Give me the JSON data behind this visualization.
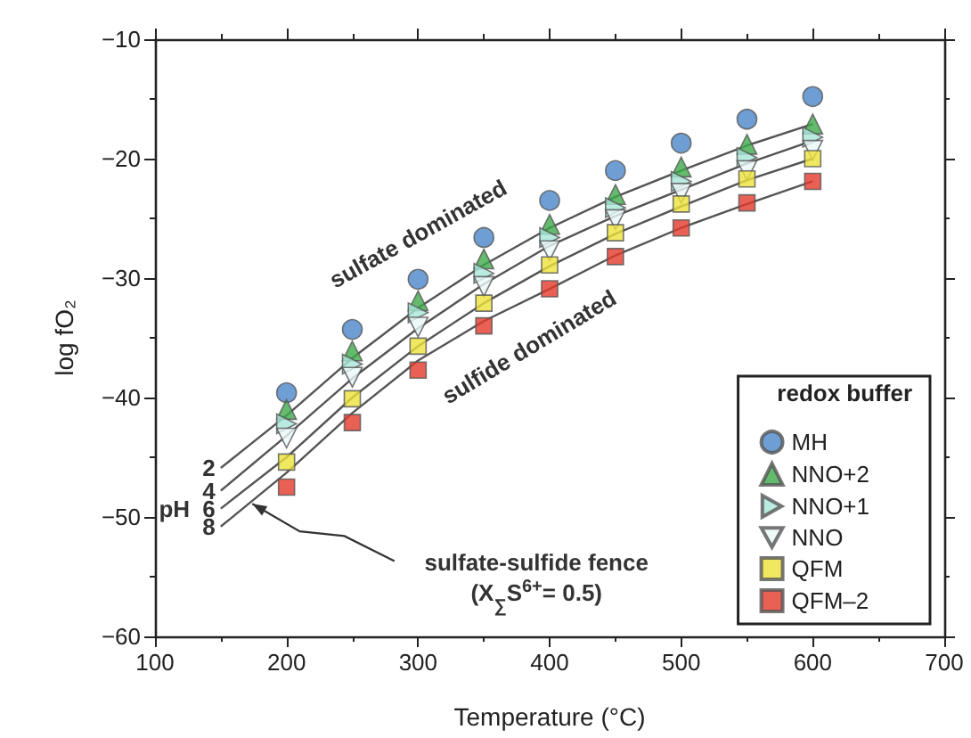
{
  "chart_data": {
    "type": "scatter",
    "xlabel": "Temperature (°C)",
    "ylabel": "log fO₂",
    "legend_title": "redox buffer",
    "xlim": [
      100,
      700
    ],
    "xticks": [
      100,
      200,
      300,
      400,
      500,
      600,
      700
    ],
    "ylim": [
      -60,
      -10
    ],
    "yticks": [
      -60,
      -50,
      -40,
      -30,
      -20,
      -10
    ],
    "grid": false,
    "legend": "bottom right",
    "x": [
      200,
      250,
      300,
      350,
      400,
      450,
      500,
      550,
      600
    ],
    "series": [
      {
        "name": "MH",
        "color": "#4a86c8",
        "marker": "circle",
        "values": [
          -39.6,
          -34.3,
          -30.1,
          -26.6,
          -23.5,
          -21.0,
          -18.7,
          -16.7,
          -14.8
        ]
      },
      {
        "name": "NNO+2",
        "color": "#3daa4a",
        "marker": "triangle",
        "values": [
          -41.0,
          -36.1,
          -31.9,
          -28.4,
          -25.5,
          -23.0,
          -20.7,
          -18.8,
          -17.1
        ]
      },
      {
        "name": "NNO+1",
        "color": "#a8e6d8",
        "marker": "triangle-right",
        "values": [
          -42.2,
          -37.2,
          -32.9,
          -29.6,
          -26.6,
          -24.1,
          -21.9,
          -19.9,
          -18.2
        ]
      },
      {
        "name": "NNO",
        "color": "#eaf7f8",
        "marker": "triangle-down",
        "values": [
          -43.4,
          -38.3,
          -34.1,
          -30.7,
          -27.7,
          -25.1,
          -22.9,
          -21.0,
          -19.3
        ]
      },
      {
        "name": "QFM",
        "color": "#ece239",
        "marker": "square",
        "values": [
          -45.4,
          -40.1,
          -35.7,
          -32.1,
          -28.9,
          -26.2,
          -23.8,
          -21.7,
          -20.0
        ]
      },
      {
        "name": "QFM–2",
        "color": "#e33a2b",
        "marker": "square",
        "values": [
          -47.5,
          -42.1,
          -37.7,
          -34.0,
          -30.9,
          -28.2,
          -25.8,
          -23.7,
          -21.9
        ]
      },
      {
        "name": "2",
        "type": "line",
        "color": "#555555",
        "marker": "none",
        "x": [
          150,
          200,
          250,
          300,
          350,
          400,
          450,
          500,
          550,
          600
        ],
        "values": [
          -45.9,
          -41.5,
          -36.7,
          -32.5,
          -28.9,
          -25.8,
          -23.2,
          -21.0,
          -18.9,
          -17.1
        ]
      },
      {
        "name": "4",
        "type": "line",
        "color": "#555555",
        "marker": "none",
        "x": [
          150,
          200,
          250,
          300,
          350,
          400,
          450,
          500,
          550,
          600
        ],
        "values": [
          -47.8,
          -43.2,
          -38.4,
          -34.2,
          -30.5,
          -27.3,
          -24.8,
          -22.6,
          -20.4,
          -18.5
        ]
      },
      {
        "name": "6",
        "type": "line",
        "color": "#555555",
        "marker": "none",
        "x": [
          150,
          200,
          250,
          300,
          350,
          400,
          450,
          500,
          550,
          600
        ],
        "values": [
          -49.3,
          -45.0,
          -40.0,
          -35.7,
          -32.1,
          -29.0,
          -26.3,
          -24.0,
          -21.8,
          -20.0
        ]
      },
      {
        "name": "8",
        "type": "line",
        "color": "#555555",
        "marker": "none",
        "x": [
          150,
          200,
          250,
          300,
          350,
          400,
          450,
          500,
          550,
          600
        ],
        "values": [
          -50.8,
          -46.3,
          -41.3,
          -36.9,
          -33.6,
          -30.9,
          -28.1,
          -25.8,
          -23.8,
          -21.9
        ]
      }
    ],
    "annotations": [
      "sulfate dominated",
      "sulfide dominated",
      "pH",
      {
        "text": "sulfate-sulfide fence",
        "x": 174,
        "y": -48.9
      },
      "(X$_{∑}$S$^{6+}$= 0.5)"
    ]
  }
}
